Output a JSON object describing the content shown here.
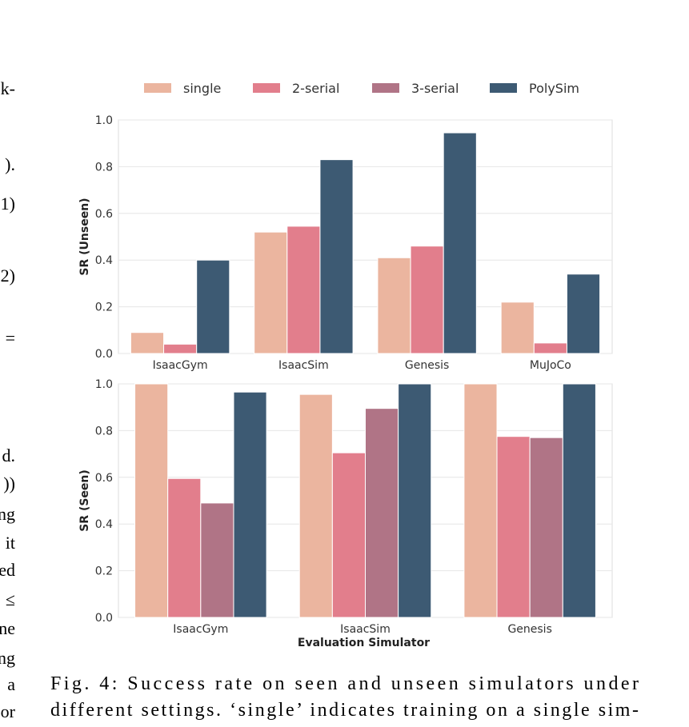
{
  "chart_data": [
    {
      "type": "bar",
      "ylabel": "SR (Unseen)",
      "categories": [
        "IsaacGym",
        "IsaacSim",
        "Genesis",
        "MuJoCo"
      ],
      "series": [
        {
          "name": "single",
          "color": "#ebb59f",
          "values": [
            0.09,
            0.52,
            0.41,
            0.22
          ]
        },
        {
          "name": "2-serial",
          "color": "#e27e8c",
          "values": [
            0.04,
            0.545,
            0.46,
            0.045
          ]
        },
        {
          "name": "3-serial",
          "color": "#b07486",
          "values": [
            null,
            null,
            null,
            null
          ]
        },
        {
          "name": "PolySim",
          "color": "#3d5a73",
          "values": [
            0.4,
            0.83,
            0.945,
            0.34
          ]
        }
      ],
      "ylim": [
        0,
        1
      ],
      "yticks": [
        {
          "value": 0,
          "label": "0.0"
        },
        0.2,
        0.4,
        0.6,
        0.8,
        {
          "value": 1,
          "label": "1.0"
        }
      ],
      "grid": true,
      "legend": "top"
    },
    {
      "type": "bar",
      "ylabel": "SR (Seen)",
      "xlabel": "Evaluation Simulator",
      "categories": [
        "IsaacGym",
        "IsaacSim",
        "Genesis"
      ],
      "series": [
        {
          "name": "single",
          "color": "#ebb59f",
          "values": [
            1.0,
            0.955,
            1.0
          ]
        },
        {
          "name": "2-serial",
          "color": "#e27e8c",
          "values": [
            0.595,
            0.705,
            0.775
          ]
        },
        {
          "name": "3-serial",
          "color": "#b07486",
          "values": [
            0.49,
            0.895,
            0.77
          ]
        },
        {
          "name": "PolySim",
          "color": "#3d5a73",
          "values": [
            0.965,
            1.0,
            1.0
          ]
        }
      ],
      "ylim": [
        0,
        1
      ],
      "yticks": [
        {
          "value": 0,
          "label": "0.0"
        },
        0.2,
        0.4,
        0.6,
        0.8,
        {
          "value": 1,
          "label": "1.0"
        }
      ],
      "grid": true
    }
  ],
  "margin_text": [
    "k-",
    ").",
    "1)",
    "2)",
    "=",
    "d.",
    "))",
    "ng",
    "it",
    "ed",
    "≤",
    "ne",
    "ng",
    "a",
    "or"
  ],
  "caption": [
    "Fig. 4: Success rate on seen and unseen simulators under",
    "different settings. ‘single’ indicates training on a single sim-"
  ]
}
